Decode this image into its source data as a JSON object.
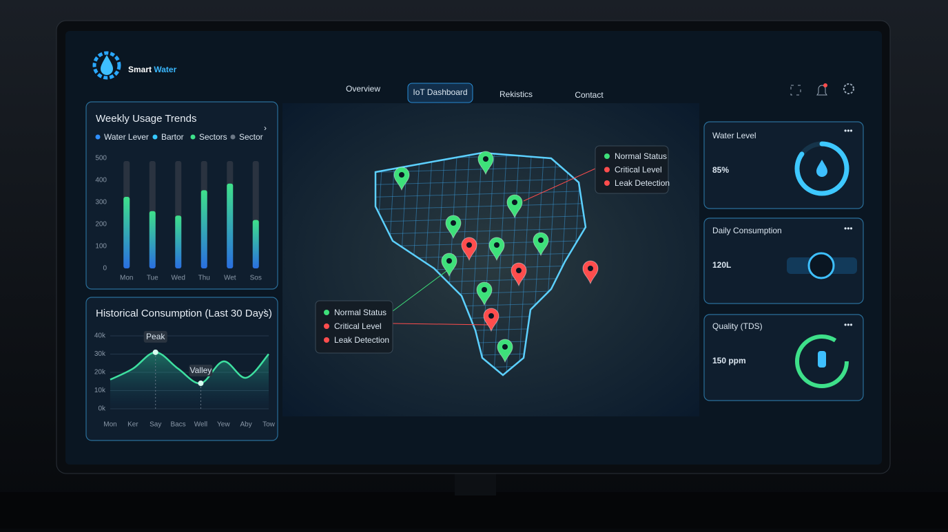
{
  "header": {
    "brand": [
      "Smart",
      "Water"
    ],
    "nav": [
      "Overview",
      "IoT Dashboard",
      "Rekistics",
      "Contact"
    ]
  },
  "chart_data": [
    {
      "type": "bar",
      "title": "Weekly Usage Trends",
      "legend": [
        {
          "name": "Water Lever",
          "color": "#2f8fff"
        },
        {
          "name": "Bartor",
          "color": "#35c8ff"
        },
        {
          "name": "Sectors",
          "color": "#3ee08a"
        },
        {
          "name": "Sector",
          "color": "#6b7785"
        }
      ],
      "categories": [
        "Mon",
        "Tue",
        "Wed",
        "Thu",
        "Wet",
        "Sos"
      ],
      "values": [
        325,
        260,
        240,
        355,
        385,
        220
      ],
      "color": "#3ee08a",
      "ylim": [
        0,
        500
      ],
      "yticks": [
        0,
        100,
        200,
        300,
        400,
        500
      ],
      "grid": false
    },
    {
      "type": "line",
      "title": "Historical Consumption (Last 30 Days)",
      "categories": [
        "Mon",
        "Ker",
        "Say",
        "Bacs",
        "Well",
        "Yew",
        "Aby",
        "Tow"
      ],
      "values": [
        16000,
        22000,
        31000,
        22000,
        14000,
        26000,
        17000,
        30000
      ],
      "color": "#3ee0a0",
      "ylim": [
        0,
        40000
      ],
      "yticks": [
        {
          "value": 0,
          "label": "0k"
        },
        {
          "value": 10000,
          "label": "10k"
        },
        {
          "value": 20000,
          "label": "20k"
        },
        {
          "value": 30000,
          "label": "30k"
        },
        {
          "value": 40000,
          "label": "40k"
        }
      ],
      "annotations": [
        "Peak",
        "Valley"
      ],
      "grid": true
    }
  ],
  "map": {
    "legends": [
      [
        "Normal Status",
        "Critical Level",
        "Leak Detection"
      ],
      [
        "Normal Status",
        "Critical Level",
        "Leak Detection"
      ]
    ],
    "status_colors": [
      "#3ee07a",
      "#ff4d4d",
      "#ff4d4d"
    ]
  },
  "cards": [
    {
      "title": "Water Level",
      "value": 85,
      "value_label": "85%"
    },
    {
      "title": "Daily Consumption",
      "value": "120L"
    },
    {
      "title": "Quality (TDS)",
      "value": "150 ppm"
    }
  ]
}
